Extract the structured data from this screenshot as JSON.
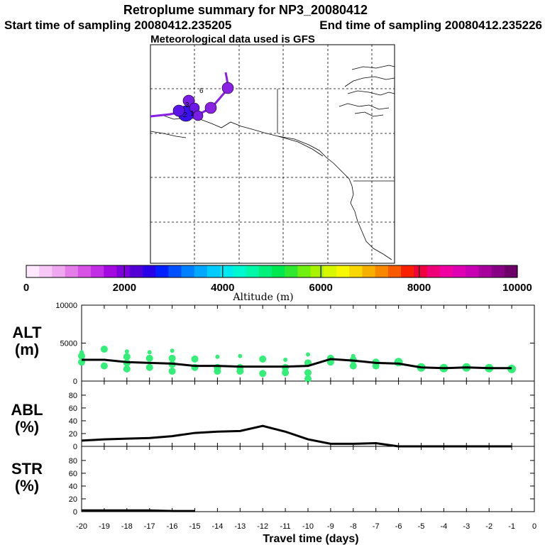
{
  "header": {
    "title": "Retroplume summary for NP3_20080412",
    "start_label": "Start time of sampling 20080412.235205",
    "end_label": "End time of sampling 20080412.235226",
    "met_label": "Meteorological data used is GFS"
  },
  "map": {
    "plume_path_color": "#8a1fe6",
    "day_markers": [
      "6",
      "3",
      "2",
      "1",
      "5",
      "4"
    ]
  },
  "colorbar": {
    "title": "Altitude (m)",
    "min": 0,
    "max": 10000,
    "tick_labels": [
      "0",
      "2000",
      "4000",
      "6000",
      "8000",
      "10000"
    ],
    "colors": [
      "#ffe9ff",
      "#f7c8f7",
      "#efa7ef",
      "#e47de8",
      "#d653e6",
      "#c22ee6",
      "#a20ae0",
      "#7e00dc",
      "#5200d6",
      "#2800e8",
      "#0020ff",
      "#0050ff",
      "#0080ff",
      "#00a8ff",
      "#00ccff",
      "#00e8f0",
      "#00f8d0",
      "#00f8a8",
      "#00f07c",
      "#00e850",
      "#30e830",
      "#70f010",
      "#a8f400",
      "#d8f800",
      "#f8f800",
      "#f8d800",
      "#f8b000",
      "#f88800",
      "#f85a00",
      "#f82000",
      "#f0003c",
      "#f00078",
      "#f000a0",
      "#e000b4",
      "#c800b4",
      "#a8009c",
      "#880084",
      "#6c0068"
    ]
  },
  "chart_data": [
    {
      "type": "scatter+line",
      "name": "altitude",
      "panel_label": "ALT",
      "panel_unit": "(m)",
      "ylim": [
        0,
        10000
      ],
      "y_tick_labels": [
        "10000",
        "5000",
        "0"
      ],
      "line_color": "#000000",
      "dot_color": "#33ee77",
      "x": [
        -20,
        -19,
        -18,
        -17,
        -16,
        -15,
        -14,
        -13,
        -12,
        -11,
        -10,
        -9,
        -8,
        -7,
        -6,
        -5,
        -4,
        -3,
        -2,
        -1
      ],
      "median": [
        2800,
        2800,
        2500,
        2400,
        2300,
        2000,
        2000,
        1900,
        1900,
        1900,
        2000,
        2900,
        2700,
        2400,
        2300,
        1800,
        1700,
        1800,
        1700,
        1700
      ],
      "spread_points": [
        {
          "x": -20,
          "values": [
            3800,
            3300,
            2500
          ]
        },
        {
          "x": -19,
          "values": [
            4200,
            2000
          ]
        },
        {
          "x": -18,
          "values": [
            3900,
            3200,
            2400,
            1600
          ]
        },
        {
          "x": -17,
          "values": [
            3800,
            3000,
            1800
          ]
        },
        {
          "x": -16,
          "values": [
            4000,
            3000,
            2200,
            1300
          ]
        },
        {
          "x": -15,
          "values": [
            2900,
            1800
          ]
        },
        {
          "x": -14,
          "values": [
            3200,
            1800,
            1300
          ]
        },
        {
          "x": -13,
          "values": [
            3300,
            1800,
            1300
          ]
        },
        {
          "x": -12,
          "values": [
            2900,
            1000
          ]
        },
        {
          "x": -11,
          "values": [
            2800,
            1800,
            1100
          ]
        },
        {
          "x": -10,
          "values": [
            3500,
            2400,
            1100,
            300
          ]
        },
        {
          "x": -9,
          "values": [
            3000,
            2500
          ]
        },
        {
          "x": -8,
          "values": [
            3300,
            2800,
            2000
          ]
        },
        {
          "x": -7,
          "values": [
            2500,
            2000
          ]
        },
        {
          "x": -6,
          "values": [
            2500
          ]
        },
        {
          "x": -5,
          "values": [
            1800
          ]
        },
        {
          "x": -4,
          "values": [
            1700
          ]
        },
        {
          "x": -3,
          "values": [
            1800
          ]
        },
        {
          "x": -2,
          "values": [
            1700
          ]
        },
        {
          "x": -1,
          "values": [
            1600
          ]
        }
      ]
    },
    {
      "type": "line",
      "name": "abl",
      "panel_label": "ABL",
      "panel_unit": "(%)",
      "ylim": [
        0,
        100
      ],
      "y_tick_labels": [
        "80",
        "60",
        "40",
        "20",
        "0"
      ],
      "line_color": "#000000",
      "x": [
        -20,
        -19,
        -18,
        -17,
        -16,
        -15,
        -14,
        -13,
        -12,
        -11,
        -10,
        -9,
        -8,
        -7,
        -6,
        -5,
        -4,
        -3,
        -2,
        -1
      ],
      "values": [
        9,
        11,
        12,
        13,
        16,
        21,
        23,
        24,
        32,
        23,
        11,
        4,
        4,
        5,
        0,
        0,
        0,
        0,
        0,
        0
      ]
    },
    {
      "type": "line",
      "name": "str",
      "panel_label": "STR",
      "panel_unit": "(%)",
      "ylim": [
        0,
        100
      ],
      "y_tick_labels": [
        "80",
        "60",
        "40",
        "20",
        "0"
      ],
      "line_color": "#000000",
      "x": [
        -20,
        -19,
        -18,
        -17,
        -16,
        -15
      ],
      "values": [
        2,
        2,
        2,
        2,
        1,
        1
      ]
    }
  ],
  "x_axis": {
    "label": "Travel time (days)",
    "xlim": [
      -20,
      0
    ],
    "tick_labels": [
      "-20",
      "-19",
      "-18",
      "-17",
      "-16",
      "-15",
      "-14",
      "-13",
      "-12",
      "-11",
      "-10",
      "-9",
      "-8",
      "-7",
      "-6",
      "-5",
      "-4",
      "-3",
      "-2",
      "-1",
      "0"
    ]
  }
}
